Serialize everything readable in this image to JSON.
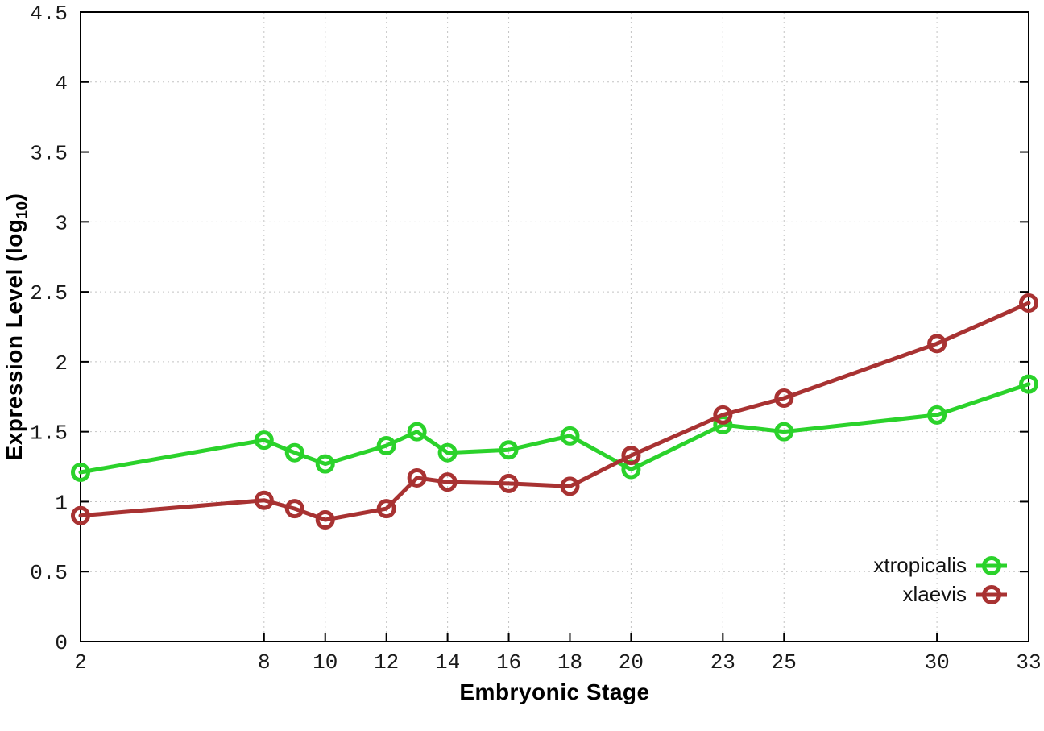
{
  "page": {
    "background": "#ffffff"
  },
  "chart_data": {
    "type": "line",
    "title": "",
    "xlabel": "Embryonic Stage",
    "ylabel": {
      "main": "Expression Level (log",
      "sub": "10",
      "close": ")"
    },
    "xlim": [
      2,
      33
    ],
    "ylim": [
      0,
      4.5
    ],
    "grid": true,
    "grid_style": "dotted",
    "grid_color": "#c4c4c4",
    "border_color": "#000000",
    "legend_position": "bottom-right-inside",
    "x_ticks": [
      2,
      8,
      10,
      12,
      14,
      16,
      18,
      20,
      23,
      25,
      30,
      33
    ],
    "x_tick_labels": [
      "2",
      "8",
      "10",
      "12",
      "14",
      "16",
      "18",
      "20",
      "23",
      "25",
      "30",
      "33"
    ],
    "y_ticks": [
      0,
      0.5,
      1,
      1.5,
      2,
      2.5,
      3,
      3.5,
      4,
      4.5
    ],
    "y_tick_labels": [
      "0",
      "0.5",
      "1",
      "1.5",
      "2",
      "2.5",
      "3",
      "3.5",
      "4",
      "4.5"
    ],
    "x": [
      2,
      8,
      9,
      10,
      12,
      13,
      14,
      16,
      18,
      20,
      23,
      25,
      30,
      33
    ],
    "series": [
      {
        "name": "xtropicalis",
        "color": "#2bd22b",
        "marker": "open-circle",
        "values": [
          1.21,
          1.44,
          1.35,
          1.27,
          1.4,
          1.5,
          1.35,
          1.37,
          1.47,
          1.23,
          1.55,
          1.5,
          1.62,
          1.84
        ]
      },
      {
        "name": "xlaevis",
        "color": "#a83232",
        "marker": "open-circle",
        "values": [
          0.9,
          1.01,
          0.95,
          0.87,
          0.95,
          1.17,
          1.14,
          1.13,
          1.11,
          1.33,
          1.62,
          1.74,
          2.13,
          2.42
        ]
      }
    ]
  }
}
